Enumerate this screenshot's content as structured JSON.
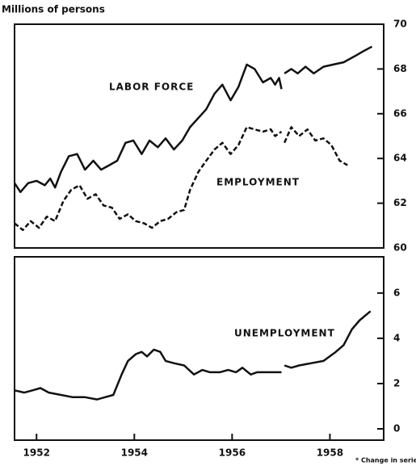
{
  "chart_data": [
    {
      "type": "line",
      "subtitle": "Millions of persons",
      "xlim": [
        1951.55,
        1959.1
      ],
      "ylim": [
        60,
        70
      ],
      "yticks": [
        60,
        62,
        64,
        66,
        68,
        70
      ],
      "series": [
        {
          "name": "LABOR FORCE",
          "color": "#111111",
          "dashed": false,
          "x": [
            1951.55,
            1951.67,
            1951.83,
            1952.0,
            1952.17,
            1952.28,
            1952.38,
            1952.5,
            1952.66,
            1952.83,
            1952.99,
            1953.16,
            1953.32,
            1953.49,
            1953.65,
            1953.82,
            1953.98,
            1954.15,
            1954.31,
            1954.48,
            1954.64,
            1954.81,
            1954.98,
            1955.14,
            1955.47,
            1955.64,
            1955.8,
            1955.97,
            1956.13,
            1956.3,
            1956.46,
            1956.63,
            1956.79,
            1956.88,
            1956.96,
            1957.01,
            1957.04,
            1957.07,
            1957.21,
            1957.34,
            1957.5,
            1957.67,
            1957.87,
            1958.07,
            1958.28,
            1958.53,
            1958.69,
            1958.86
          ],
          "values": [
            62.9,
            62.5,
            62.9,
            63.0,
            62.8,
            63.1,
            62.7,
            63.4,
            64.1,
            64.2,
            63.5,
            63.9,
            63.5,
            63.7,
            63.9,
            64.7,
            64.8,
            64.2,
            64.8,
            64.5,
            64.9,
            64.4,
            64.8,
            65.4,
            66.2,
            66.9,
            67.3,
            66.6,
            67.2,
            68.2,
            68.0,
            67.4,
            67.6,
            67.3,
            67.6,
            67.1,
            null,
            67.8,
            68.0,
            67.8,
            68.1,
            67.8,
            68.1,
            68.2,
            68.3,
            68.6,
            68.8,
            69.0
          ]
        },
        {
          "name": "EMPLOYMENT",
          "color": "#111111",
          "dashed": true,
          "x": [
            1951.55,
            1951.72,
            1951.88,
            1952.05,
            1952.21,
            1952.38,
            1952.55,
            1952.71,
            1952.88,
            1953.04,
            1953.21,
            1953.37,
            1953.54,
            1953.7,
            1953.87,
            1954.03,
            1954.2,
            1954.36,
            1954.53,
            1954.69,
            1954.86,
            1955.02,
            1955.14,
            1955.31,
            1955.47,
            1955.64,
            1955.8,
            1955.97,
            1956.13,
            1956.3,
            1956.46,
            1956.63,
            1956.79,
            1956.88,
            1957.01,
            1957.04,
            1957.07,
            1957.21,
            1957.37,
            1957.54,
            1957.7,
            1957.87,
            1958.03,
            1958.2,
            1958.36
          ],
          "values": [
            61.1,
            60.8,
            61.2,
            60.9,
            61.4,
            61.2,
            62.1,
            62.6,
            62.8,
            62.2,
            62.4,
            61.9,
            61.8,
            61.3,
            61.5,
            61.2,
            61.1,
            60.9,
            61.2,
            61.3,
            61.6,
            61.7,
            62.6,
            63.4,
            63.9,
            64.4,
            64.7,
            64.2,
            64.6,
            65.4,
            65.3,
            65.2,
            65.3,
            65.0,
            65.2,
            null,
            64.7,
            65.4,
            65.0,
            65.3,
            64.8,
            64.9,
            64.6,
            63.9,
            63.7
          ]
        }
      ]
    },
    {
      "type": "line",
      "xlim": [
        1951.55,
        1959.1
      ],
      "ylim": [
        -0.5,
        7.6
      ],
      "yticks": [
        0,
        2,
        4,
        6
      ],
      "xticks": [
        1952,
        1954,
        1956,
        1958
      ],
      "series": [
        {
          "name": "UNEMPLOYMENT",
          "color": "#111111",
          "dashed": false,
          "x": [
            1951.55,
            1951.75,
            1951.92,
            1952.08,
            1952.25,
            1952.5,
            1952.74,
            1952.99,
            1953.24,
            1953.4,
            1953.57,
            1953.74,
            1953.87,
            1954.03,
            1954.15,
            1954.26,
            1954.4,
            1954.53,
            1954.64,
            1954.81,
            1955.02,
            1955.22,
            1955.39,
            1955.55,
            1955.75,
            1955.92,
            1956.08,
            1956.21,
            1956.38,
            1956.51,
            1956.71,
            1956.88,
            1957.01,
            1957.04,
            1957.07,
            1957.21,
            1957.37,
            1957.62,
            1957.87,
            1958.12,
            1958.28,
            1958.45,
            1958.61,
            1958.83
          ],
          "values": [
            1.7,
            1.6,
            1.7,
            1.8,
            1.6,
            1.5,
            1.4,
            1.4,
            1.3,
            1.4,
            1.5,
            2.4,
            3.0,
            3.3,
            3.4,
            3.2,
            3.5,
            3.4,
            3.0,
            2.9,
            2.8,
            2.4,
            2.6,
            2.5,
            2.5,
            2.6,
            2.5,
            2.7,
            2.4,
            2.5,
            2.5,
            2.5,
            2.5,
            null,
            2.8,
            2.7,
            2.8,
            2.9,
            3.0,
            3.4,
            3.7,
            4.4,
            4.8,
            5.2
          ]
        }
      ],
      "annotation": "* Change in series."
    }
  ]
}
